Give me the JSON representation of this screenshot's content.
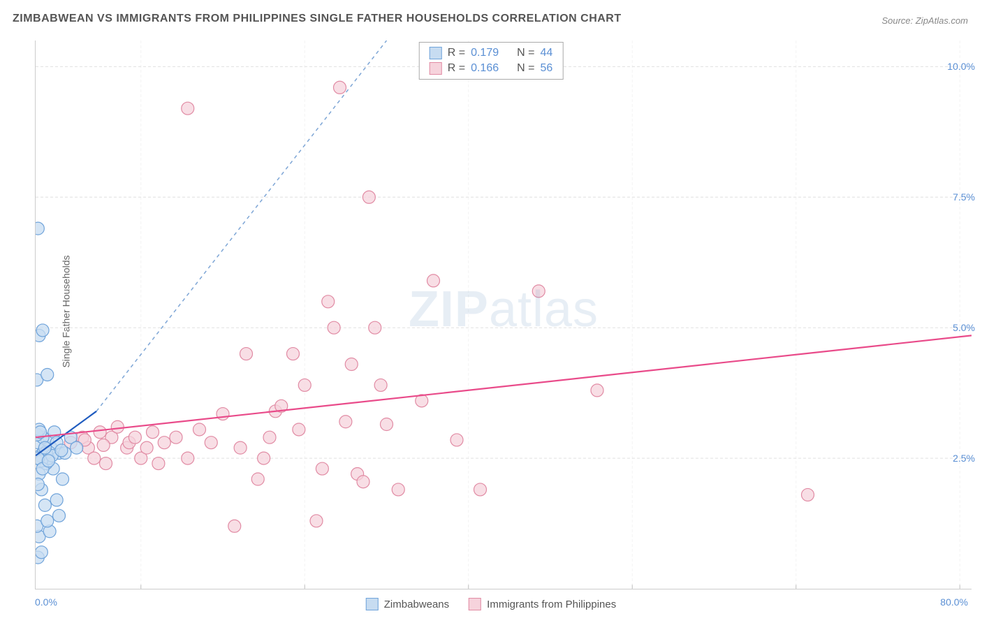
{
  "title": "ZIMBABWEAN VS IMMIGRANTS FROM PHILIPPINES SINGLE FATHER HOUSEHOLDS CORRELATION CHART",
  "source": "Source: ZipAtlas.com",
  "ylabel": "Single Father Households",
  "watermark_bold": "ZIP",
  "watermark_rest": "atlas",
  "chart": {
    "type": "scatter",
    "xlim": [
      0,
      80
    ],
    "ylim": [
      0,
      10.5
    ],
    "xlabel_min": "0.0%",
    "xlabel_max": "80.0%",
    "xtick_positions": [
      9,
      23,
      37,
      51,
      65,
      79
    ],
    "yticks": [
      {
        "v": 2.5,
        "label": "2.5%"
      },
      {
        "v": 5.0,
        "label": "5.0%"
      },
      {
        "v": 7.5,
        "label": "7.5%"
      },
      {
        "v": 10.0,
        "label": "10.0%"
      }
    ],
    "grid_color": "#e0e0e0",
    "grid_dash": "4,3",
    "background_color": "#ffffff",
    "marker_radius": 9,
    "marker_stroke_width": 1.2,
    "series": [
      {
        "name": "Zimbabweans",
        "fill": "#c7dcf1",
        "stroke": "#6fa3da",
        "regression": {
          "color": "#1f5bbf",
          "width": 2.2,
          "x1": 0,
          "y1": 2.55,
          "x2": 5.2,
          "y2": 3.4,
          "dash_ext": {
            "x2": 30,
            "y2": 10.5,
            "color": "#7ea6d6",
            "dash": "5,5"
          }
        },
        "correlation": {
          "R": "0.179",
          "N": "44"
        },
        "points": [
          [
            0.2,
            0.6
          ],
          [
            0.5,
            0.7
          ],
          [
            0.3,
            1.0
          ],
          [
            1.2,
            1.1
          ],
          [
            0.1,
            1.2
          ],
          [
            1.0,
            1.3
          ],
          [
            2.0,
            1.4
          ],
          [
            0.8,
            1.6
          ],
          [
            1.8,
            1.7
          ],
          [
            0.5,
            1.9
          ],
          [
            2.3,
            2.1
          ],
          [
            0.3,
            2.2
          ],
          [
            1.5,
            2.3
          ],
          [
            0.9,
            2.4
          ],
          [
            1.1,
            2.5
          ],
          [
            0.4,
            2.55
          ],
          [
            2.0,
            2.6
          ],
          [
            0.7,
            2.65
          ],
          [
            1.3,
            2.7
          ],
          [
            0.2,
            2.8
          ],
          [
            1.0,
            2.85
          ],
          [
            0.6,
            2.9
          ],
          [
            0.1,
            2.95
          ],
          [
            1.6,
            3.0
          ],
          [
            0.3,
            3.05
          ],
          [
            0.9,
            2.6
          ],
          [
            0.5,
            2.45
          ],
          [
            0.2,
            2.5
          ],
          [
            1.4,
            2.55
          ],
          [
            2.5,
            2.6
          ],
          [
            0.8,
            2.7
          ],
          [
            0.4,
            3.0
          ],
          [
            0.2,
            2.0
          ],
          [
            0.6,
            2.3
          ],
          [
            0.1,
            4.0
          ],
          [
            1.0,
            4.1
          ],
          [
            0.3,
            4.85
          ],
          [
            0.6,
            4.95
          ],
          [
            0.2,
            6.9
          ],
          [
            3.0,
            2.9
          ],
          [
            3.5,
            2.7
          ],
          [
            1.8,
            2.8
          ],
          [
            2.2,
            2.65
          ],
          [
            1.1,
            2.45
          ]
        ]
      },
      {
        "name": "Immigants from Philippines",
        "fill": "#f6d3dc",
        "stroke": "#e18ba4",
        "regression": {
          "color": "#e94b8a",
          "width": 2.2,
          "x1": 0,
          "y1": 2.9,
          "x2": 80,
          "y2": 4.85
        },
        "correlation": {
          "R": "0.166",
          "N": "56"
        },
        "points": [
          [
            3,
            2.8
          ],
          [
            4,
            2.9
          ],
          [
            4.5,
            2.7
          ],
          [
            5,
            2.5
          ],
          [
            5.5,
            3.0
          ],
          [
            6,
            2.4
          ],
          [
            6.5,
            2.9
          ],
          [
            7,
            3.1
          ],
          [
            7.8,
            2.7
          ],
          [
            8,
            2.8
          ],
          [
            8.5,
            2.9
          ],
          [
            9,
            2.5
          ],
          [
            9.5,
            2.7
          ],
          [
            10,
            3.0
          ],
          [
            10.5,
            2.4
          ],
          [
            11,
            2.8
          ],
          [
            12,
            2.9
          ],
          [
            13,
            2.5
          ],
          [
            14,
            3.05
          ],
          [
            15,
            2.8
          ],
          [
            16,
            3.35
          ],
          [
            17,
            1.2
          ],
          [
            17.5,
            2.7
          ],
          [
            18,
            4.5
          ],
          [
            19,
            2.1
          ],
          [
            19.5,
            2.5
          ],
          [
            20,
            2.9
          ],
          [
            20.5,
            3.4
          ],
          [
            21,
            3.5
          ],
          [
            22,
            4.5
          ],
          [
            22.5,
            3.05
          ],
          [
            23,
            3.9
          ],
          [
            24,
            1.3
          ],
          [
            24.5,
            2.3
          ],
          [
            25,
            5.5
          ],
          [
            25.5,
            5.0
          ],
          [
            26,
            9.6
          ],
          [
            26.5,
            3.2
          ],
          [
            27,
            4.3
          ],
          [
            27.5,
            2.2
          ],
          [
            28,
            2.05
          ],
          [
            28.5,
            7.5
          ],
          [
            29,
            5.0
          ],
          [
            29.5,
            3.9
          ],
          [
            30,
            3.15
          ],
          [
            31,
            1.9
          ],
          [
            33,
            3.6
          ],
          [
            34,
            5.9
          ],
          [
            36,
            2.85
          ],
          [
            38,
            1.9
          ],
          [
            43,
            5.7
          ],
          [
            48,
            3.8
          ],
          [
            13,
            9.2
          ],
          [
            66,
            1.8
          ],
          [
            4.2,
            2.85
          ],
          [
            5.8,
            2.75
          ]
        ]
      }
    ],
    "legend": [
      {
        "label": "Zimbabweans",
        "fill": "#c7dcf1",
        "stroke": "#6fa3da"
      },
      {
        "label": "Immigrants from Philippines",
        "fill": "#f6d3dc",
        "stroke": "#e18ba4"
      }
    ]
  }
}
